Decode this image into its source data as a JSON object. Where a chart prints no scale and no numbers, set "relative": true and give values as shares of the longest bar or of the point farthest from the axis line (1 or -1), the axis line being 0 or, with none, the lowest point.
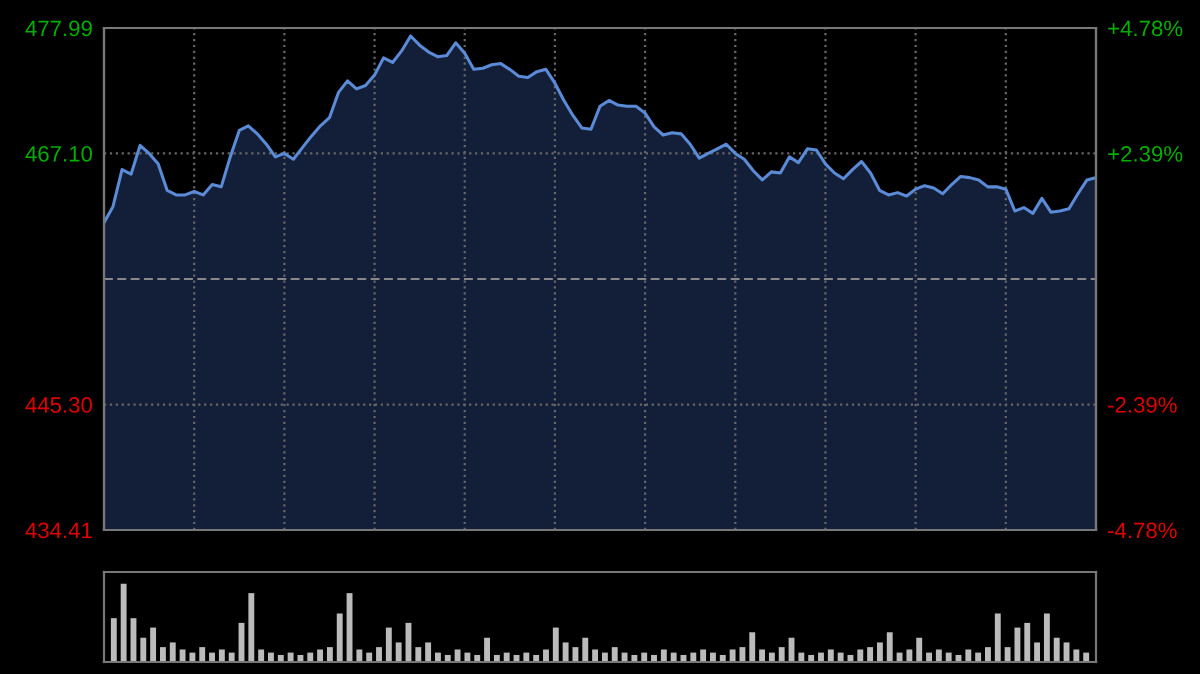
{
  "chart_data": [
    {
      "type": "area",
      "ylim": [
        434.41,
        477.99
      ],
      "yticks": [
        {
          "value": 434.41,
          "label": "434.41"
        },
        {
          "value": 445.3,
          "label": "445.30"
        },
        {
          "value": 467.1,
          "label": "467.10"
        },
        {
          "value": 477.99,
          "label": "477.99"
        }
      ],
      "y2lim": [
        -4.78,
        4.78
      ],
      "y2ticks": [
        {
          "value": -4.78,
          "label": "-4.78%"
        },
        {
          "value": -2.39,
          "label": "-2.39%"
        },
        {
          "value": 2.39,
          "label": "+2.39%"
        },
        {
          "value": 4.78,
          "label": "+4.78%"
        }
      ],
      "grid": true,
      "tick_labels": "y",
      "ref_lines": [
        {
          "axis": "y",
          "value": 456.2,
          "color": "#888888",
          "line_style": "dashed"
        }
      ],
      "categories": [
        null,
        null,
        null,
        null,
        null,
        null,
        null,
        null,
        null,
        null,
        null,
        null,
        null,
        null,
        null,
        null,
        null,
        null,
        null,
        null,
        null,
        null,
        null,
        null,
        null,
        null,
        null,
        null,
        null,
        null,
        null,
        null,
        null,
        null,
        null,
        null,
        null,
        null,
        null,
        null,
        null,
        null,
        null,
        null,
        null,
        null,
        null,
        null,
        null,
        null,
        null,
        null,
        null,
        null,
        null,
        null,
        null,
        null,
        null,
        null,
        null,
        null,
        null,
        null,
        null,
        null,
        null,
        null,
        null,
        null,
        null,
        null,
        null,
        null,
        null,
        null,
        null,
        null,
        null,
        null,
        null,
        null,
        null,
        null,
        null,
        null,
        null,
        null,
        null,
        null,
        null,
        null,
        null,
        null,
        null,
        null,
        null,
        null,
        null,
        null,
        null,
        null,
        null,
        null,
        null,
        null,
        null,
        null,
        null,
        null,
        null
      ],
      "series": [
        {
          "color": "#5b8ad6",
          "values": [
            461.1,
            462.5,
            465.7,
            465.3,
            467.8,
            467.1,
            466.2,
            463.9,
            463.5,
            463.5,
            463.8,
            463.5,
            464.4,
            464.2,
            466.8,
            469.1,
            469.5,
            468.8,
            467.9,
            466.8,
            467.1,
            466.6,
            467.6,
            468.6,
            469.5,
            470.2,
            472.4,
            473.4,
            472.7,
            473.0,
            473.9,
            475.4,
            475.0,
            476.0,
            477.3,
            476.5,
            475.9,
            475.5,
            475.6,
            476.7,
            475.8,
            474.4,
            474.5,
            474.8,
            474.9,
            474.4,
            473.8,
            473.7,
            474.2,
            474.4,
            473.2,
            471.7,
            470.4,
            469.3,
            469.2,
            471.2,
            471.7,
            471.3,
            471.2,
            471.2,
            470.6,
            469.4,
            468.7,
            468.9,
            468.8,
            467.9,
            466.7,
            467.1,
            467.5,
            467.9,
            467.1,
            466.6,
            465.6,
            464.8,
            465.5,
            465.4,
            466.8,
            466.3,
            467.5,
            467.4,
            466.2,
            465.4,
            464.9,
            465.7,
            466.4,
            465.4,
            463.9,
            463.5,
            463.7,
            463.4,
            464.0,
            464.3,
            464.1,
            463.6,
            464.4,
            465.1,
            465.0,
            464.8,
            464.2,
            464.2,
            464.0,
            462.1,
            462.4,
            461.9,
            463.2,
            462.0,
            462.1,
            462.3,
            463.6,
            464.8,
            465.0
          ]
        }
      ]
    },
    {
      "type": "bar",
      "relative": true,
      "tick_labels": false,
      "categories": [
        null,
        null,
        null,
        null,
        null,
        null,
        null,
        null,
        null,
        null,
        null,
        null,
        null,
        null,
        null,
        null,
        null,
        null,
        null,
        null,
        null,
        null,
        null,
        null,
        null,
        null,
        null,
        null,
        null,
        null,
        null,
        null,
        null,
        null,
        null,
        null,
        null,
        null,
        null,
        null,
        null,
        null,
        null,
        null,
        null,
        null,
        null,
        null,
        null,
        null,
        null,
        null,
        null,
        null,
        null,
        null,
        null,
        null,
        null,
        null,
        null,
        null,
        null,
        null,
        null,
        null,
        null,
        null,
        null,
        null,
        null,
        null,
        null,
        null,
        null,
        null,
        null,
        null,
        null,
        null,
        null,
        null,
        null,
        null,
        null,
        null,
        null,
        null,
        null,
        null,
        null,
        null,
        null,
        null,
        null,
        null,
        null,
        null,
        null,
        null
      ],
      "series": [
        {
          "color": "#bbbbbb",
          "values": [
            0.56,
            1.0,
            0.56,
            0.31,
            0.44,
            0.19,
            0.25,
            0.16,
            0.12,
            0.19,
            0.12,
            0.16,
            0.12,
            0.5,
            0.88,
            0.16,
            0.12,
            0.09,
            0.12,
            0.09,
            0.12,
            0.16,
            0.19,
            0.62,
            0.88,
            0.16,
            0.12,
            0.19,
            0.44,
            0.25,
            0.5,
            0.19,
            0.25,
            0.12,
            0.09,
            0.16,
            0.12,
            0.09,
            0.31,
            0.09,
            0.12,
            0.09,
            0.12,
            0.09,
            0.16,
            0.44,
            0.25,
            0.19,
            0.31,
            0.16,
            0.12,
            0.19,
            0.12,
            0.09,
            0.12,
            0.09,
            0.16,
            0.12,
            0.09,
            0.12,
            0.16,
            0.12,
            0.09,
            0.16,
            0.19,
            0.38,
            0.16,
            0.12,
            0.19,
            0.31,
            0.12,
            0.09,
            0.12,
            0.16,
            0.12,
            0.09,
            0.16,
            0.19,
            0.25,
            0.38,
            0.12,
            0.16,
            0.31,
            0.12,
            0.16,
            0.12,
            0.09,
            0.16,
            0.12,
            0.19,
            0.62,
            0.19,
            0.44,
            0.5,
            0.25,
            0.62,
            0.31,
            0.25,
            0.16,
            0.12
          ]
        }
      ]
    }
  ]
}
